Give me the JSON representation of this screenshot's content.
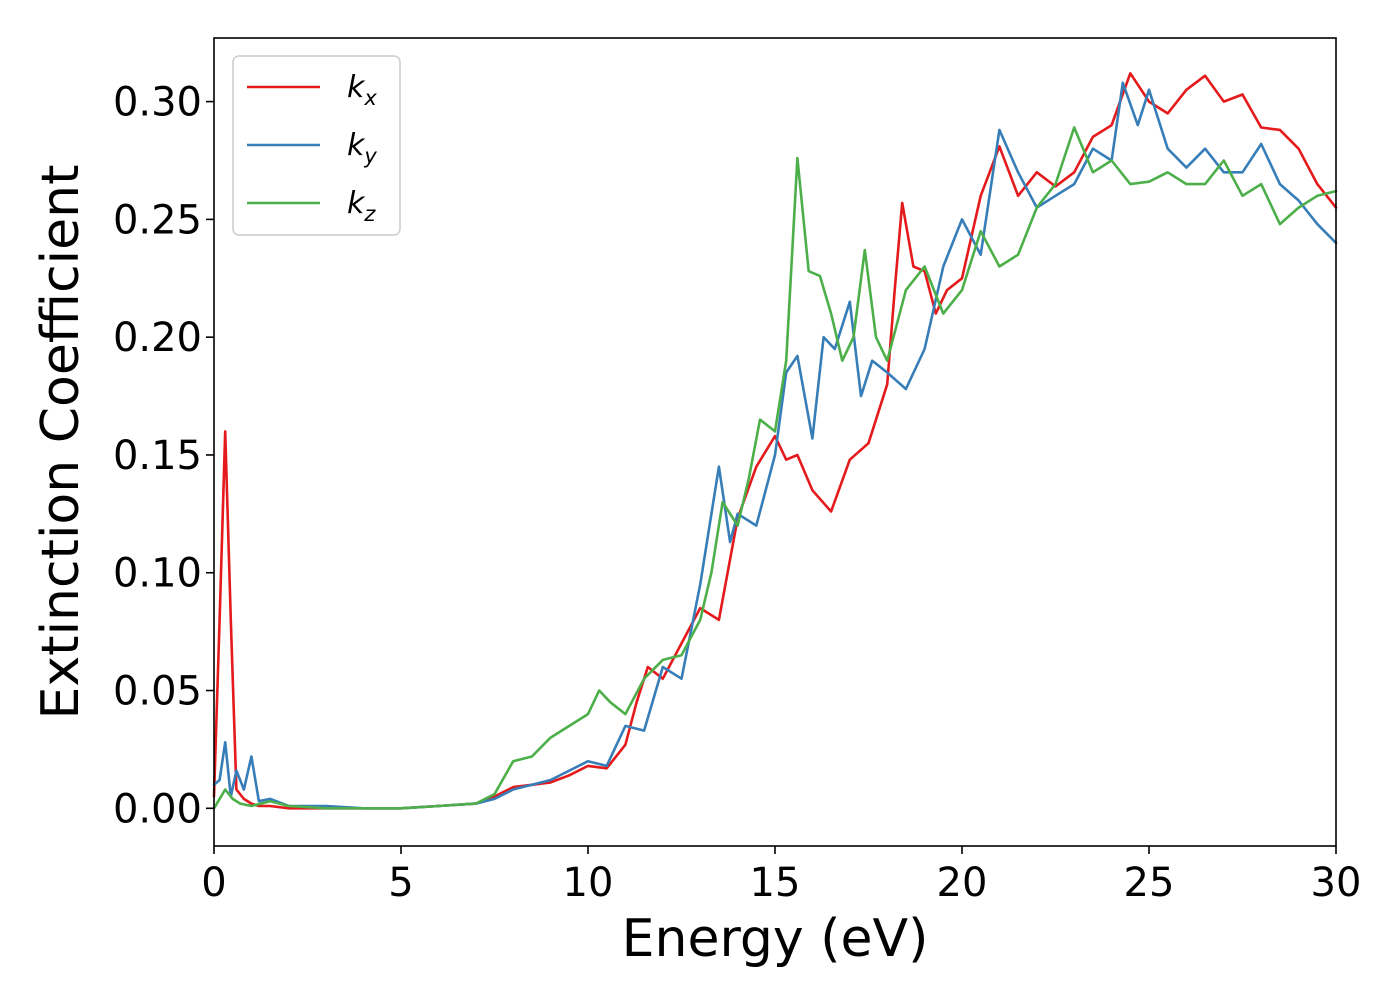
{
  "chart_data": {
    "type": "line",
    "xlabel": "Energy (eV)",
    "ylabel": "Extinction Coefficient",
    "xlim": [
      0,
      30
    ],
    "ylim": [
      -0.016,
      0.327
    ],
    "xticks": [
      0,
      5,
      10,
      15,
      20,
      25,
      30
    ],
    "xtick_labels": [
      "0",
      "5",
      "10",
      "15",
      "20",
      "25",
      "30"
    ],
    "yticks": [
      0.0,
      0.05,
      0.1,
      0.15,
      0.2,
      0.25,
      0.3
    ],
    "ytick_labels": [
      "0.00",
      "0.05",
      "0.10",
      "0.15",
      "0.20",
      "0.25",
      "0.30"
    ],
    "grid": false,
    "legend_position": "top-left",
    "series": [
      {
        "name": "k",
        "name_subscript": "x",
        "color": "#e41a1c",
        "x": [
          0,
          0.15,
          0.3,
          0.45,
          0.6,
          0.8,
          1.0,
          1.2,
          1.5,
          2,
          3,
          4,
          5,
          6,
          7,
          7.5,
          8,
          8.5,
          9,
          9.5,
          10,
          10.5,
          11,
          11.3,
          11.6,
          12,
          12.5,
          13,
          13.5,
          14,
          14.5,
          15,
          15.3,
          15.6,
          16,
          16.5,
          17,
          17.5,
          18,
          18.2,
          18.4,
          18.7,
          19,
          19.3,
          19.6,
          20,
          20.5,
          21,
          21.5,
          22,
          22.5,
          23,
          23.5,
          24,
          24.5,
          25,
          25.5,
          26,
          26.5,
          27,
          27.5,
          28,
          28.5,
          29,
          29.5,
          30
        ],
        "y": [
          0.005,
          0.08,
          0.16,
          0.08,
          0.008,
          0.004,
          0.002,
          0.001,
          0.001,
          0.0,
          0.0,
          0.0,
          0.0,
          0.001,
          0.002,
          0.005,
          0.009,
          0.01,
          0.011,
          0.014,
          0.018,
          0.017,
          0.027,
          0.045,
          0.06,
          0.055,
          0.07,
          0.085,
          0.08,
          0.123,
          0.145,
          0.158,
          0.148,
          0.15,
          0.135,
          0.126,
          0.148,
          0.155,
          0.18,
          0.22,
          0.257,
          0.23,
          0.228,
          0.21,
          0.22,
          0.225,
          0.26,
          0.281,
          0.26,
          0.27,
          0.264,
          0.27,
          0.285,
          0.29,
          0.312,
          0.3,
          0.295,
          0.305,
          0.311,
          0.3,
          0.303,
          0.289,
          0.288,
          0.28,
          0.265,
          0.255
        ]
      },
      {
        "name": "k",
        "name_subscript": "y",
        "color": "#377eb8",
        "x": [
          0,
          0.15,
          0.3,
          0.45,
          0.6,
          0.8,
          1.0,
          1.2,
          1.5,
          2,
          3,
          4,
          5,
          6,
          7,
          7.5,
          8,
          8.5,
          9,
          9.5,
          10,
          10.5,
          11,
          11.5,
          12,
          12.5,
          13,
          13.5,
          13.8,
          14,
          14.5,
          15,
          15.3,
          15.6,
          16,
          16.3,
          16.6,
          17,
          17.3,
          17.6,
          18,
          18.5,
          19,
          19.5,
          20,
          20.5,
          21,
          21.5,
          22,
          22.5,
          23,
          23.5,
          24,
          24.3,
          24.7,
          25,
          25.5,
          26,
          26.5,
          27,
          27.5,
          28,
          28.5,
          29,
          29.5,
          30
        ],
        "y": [
          0.01,
          0.012,
          0.028,
          0.005,
          0.016,
          0.008,
          0.022,
          0.003,
          0.004,
          0.001,
          0.001,
          0.0,
          0.0,
          0.001,
          0.002,
          0.004,
          0.008,
          0.01,
          0.012,
          0.016,
          0.02,
          0.018,
          0.035,
          0.033,
          0.06,
          0.055,
          0.095,
          0.145,
          0.113,
          0.125,
          0.12,
          0.15,
          0.185,
          0.192,
          0.157,
          0.2,
          0.195,
          0.215,
          0.175,
          0.19,
          0.185,
          0.178,
          0.195,
          0.23,
          0.25,
          0.235,
          0.288,
          0.27,
          0.255,
          0.26,
          0.265,
          0.28,
          0.275,
          0.308,
          0.29,
          0.305,
          0.28,
          0.272,
          0.28,
          0.27,
          0.27,
          0.282,
          0.265,
          0.258,
          0.248,
          0.24
        ]
      },
      {
        "name": "k",
        "name_subscript": "z",
        "color": "#4daf4a",
        "x": [
          0,
          0.15,
          0.3,
          0.5,
          0.7,
          1.0,
          1.5,
          2,
          3,
          4,
          5,
          6,
          7,
          7.5,
          8,
          8.5,
          9,
          9.5,
          10,
          10.3,
          10.6,
          11,
          11.5,
          12,
          12.5,
          13,
          13.3,
          13.6,
          14,
          14.3,
          14.6,
          15,
          15.3,
          15.6,
          15.9,
          16.2,
          16.5,
          16.8,
          17.1,
          17.4,
          17.7,
          18,
          18.5,
          19,
          19.5,
          20,
          20.5,
          21,
          21.5,
          22,
          22.5,
          23,
          23.5,
          24,
          24.5,
          25,
          25.5,
          26,
          26.5,
          27,
          27.5,
          28,
          28.5,
          29,
          29.5,
          30
        ],
        "y": [
          0.0,
          0.004,
          0.008,
          0.004,
          0.002,
          0.001,
          0.003,
          0.001,
          0.0,
          0.0,
          0.0,
          0.001,
          0.002,
          0.006,
          0.02,
          0.022,
          0.03,
          0.035,
          0.04,
          0.05,
          0.045,
          0.04,
          0.055,
          0.063,
          0.065,
          0.08,
          0.1,
          0.13,
          0.12,
          0.14,
          0.165,
          0.16,
          0.19,
          0.276,
          0.228,
          0.226,
          0.21,
          0.19,
          0.2,
          0.237,
          0.2,
          0.19,
          0.22,
          0.23,
          0.21,
          0.22,
          0.245,
          0.23,
          0.235,
          0.255,
          0.265,
          0.289,
          0.27,
          0.275,
          0.265,
          0.266,
          0.27,
          0.265,
          0.265,
          0.275,
          0.26,
          0.265,
          0.248,
          0.255,
          0.26,
          0.262
        ]
      }
    ]
  }
}
